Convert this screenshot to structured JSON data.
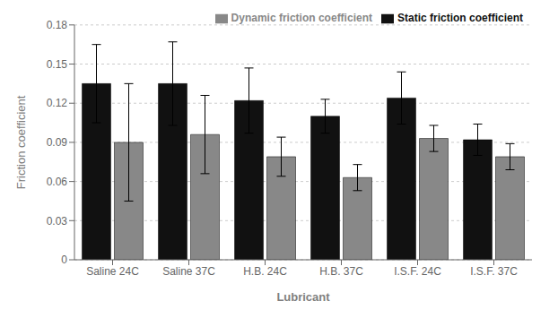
{
  "chart_data": {
    "type": "bar",
    "categories": [
      "Saline 24C",
      "Saline 37C",
      "H.B. 24C",
      "H.B. 37C",
      "I.S.F. 24C",
      "I.S.F. 37C"
    ],
    "series": [
      {
        "name": "Static friction coefficient",
        "color": "#111111",
        "values": [
          0.135,
          0.135,
          0.122,
          0.11,
          0.124,
          0.092
        ],
        "errors": [
          0.03,
          0.032,
          0.025,
          0.013,
          0.02,
          0.012
        ]
      },
      {
        "name": "Dynamic friction coefficient",
        "color": "#888888",
        "values": [
          0.09,
          0.096,
          0.079,
          0.063,
          0.093,
          0.079
        ],
        "errors": [
          0.045,
          0.03,
          0.015,
          0.01,
          0.01,
          0.01
        ]
      }
    ],
    "xlabel": "Lubricant",
    "ylabel": "Friction coefficient",
    "ylim": [
      0,
      0.18
    ],
    "yticks": [
      0,
      0.03,
      0.06,
      0.09,
      0.12,
      0.15,
      0.18
    ],
    "grid": true,
    "legend": "upper right"
  }
}
